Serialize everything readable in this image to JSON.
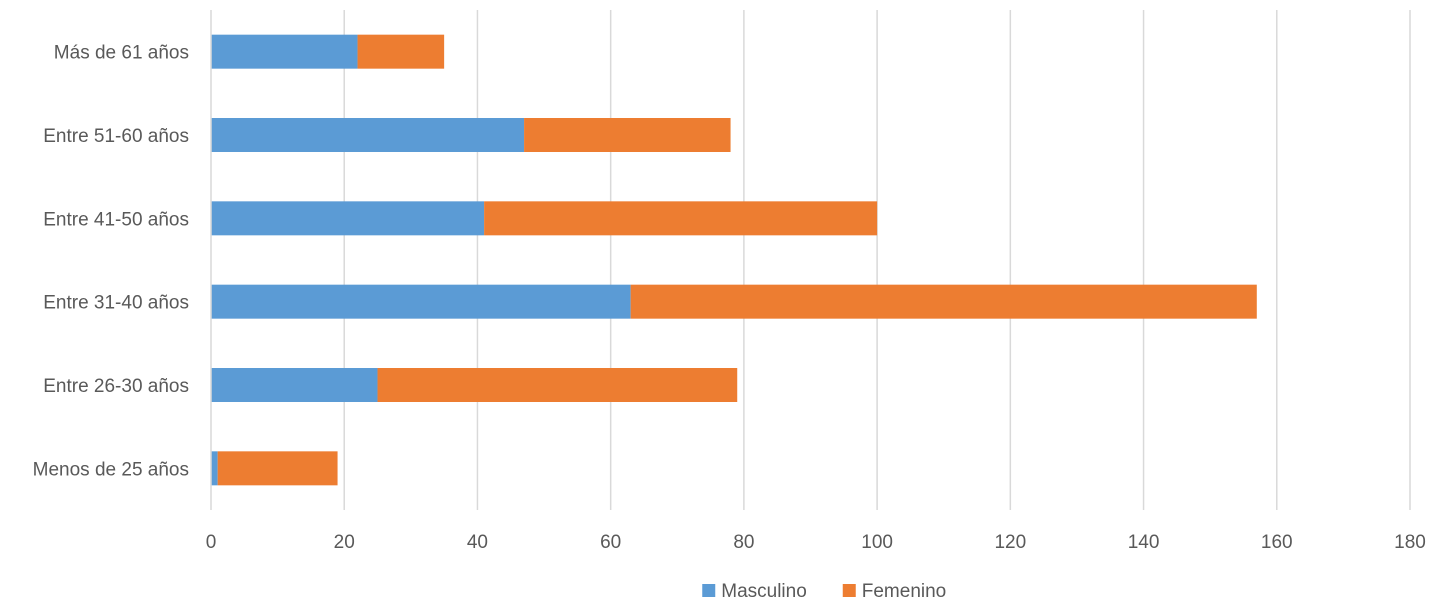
{
  "chart_data": {
    "type": "bar",
    "orientation": "horizontal",
    "stacked": true,
    "title": "",
    "xlabel": "",
    "ylabel": "",
    "xlim": [
      0,
      180
    ],
    "x_ticks": [
      0,
      20,
      40,
      60,
      80,
      100,
      120,
      140,
      160,
      180
    ],
    "grid": "vertical",
    "legend_position": "bottom",
    "categories": [
      "Menos de 25 años",
      "Entre 26-30 años",
      "Entre 31-40 años",
      "Entre 41-50 años",
      "Entre 51-60 años",
      "Más de 61 años"
    ],
    "series": [
      {
        "name": "Masculino",
        "color": "#5B9BD5",
        "values": [
          1,
          25,
          63,
          41,
          47,
          22
        ]
      },
      {
        "name": "Femenino",
        "color": "#ED7D31",
        "values": [
          18,
          54,
          94,
          59,
          31,
          13
        ]
      }
    ]
  }
}
